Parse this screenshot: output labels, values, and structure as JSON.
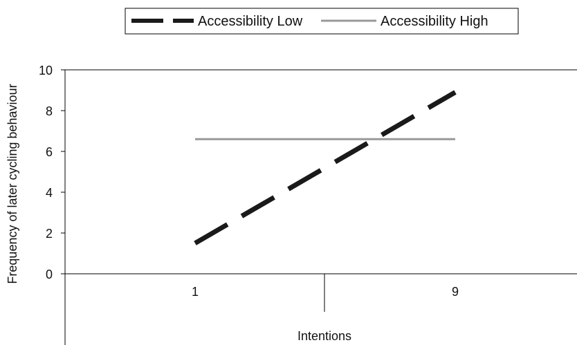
{
  "chart_data": {
    "type": "line",
    "title": "",
    "xlabel": "Intentions",
    "ylabel": "Frequency of later cycling behaviour",
    "categories": [
      "1",
      "9"
    ],
    "ylim": [
      0,
      10
    ],
    "yticks": [
      0,
      2,
      4,
      6,
      8,
      10
    ],
    "grid": false,
    "legend": "top",
    "series": [
      {
        "name": "Accessibility Low",
        "values": [
          1.5,
          8.9
        ],
        "color": "#1a1a1a",
        "style": "dashed"
      },
      {
        "name": "Accessibility High",
        "values": [
          6.6,
          6.6
        ],
        "color": "#999999",
        "style": "solid"
      }
    ]
  }
}
